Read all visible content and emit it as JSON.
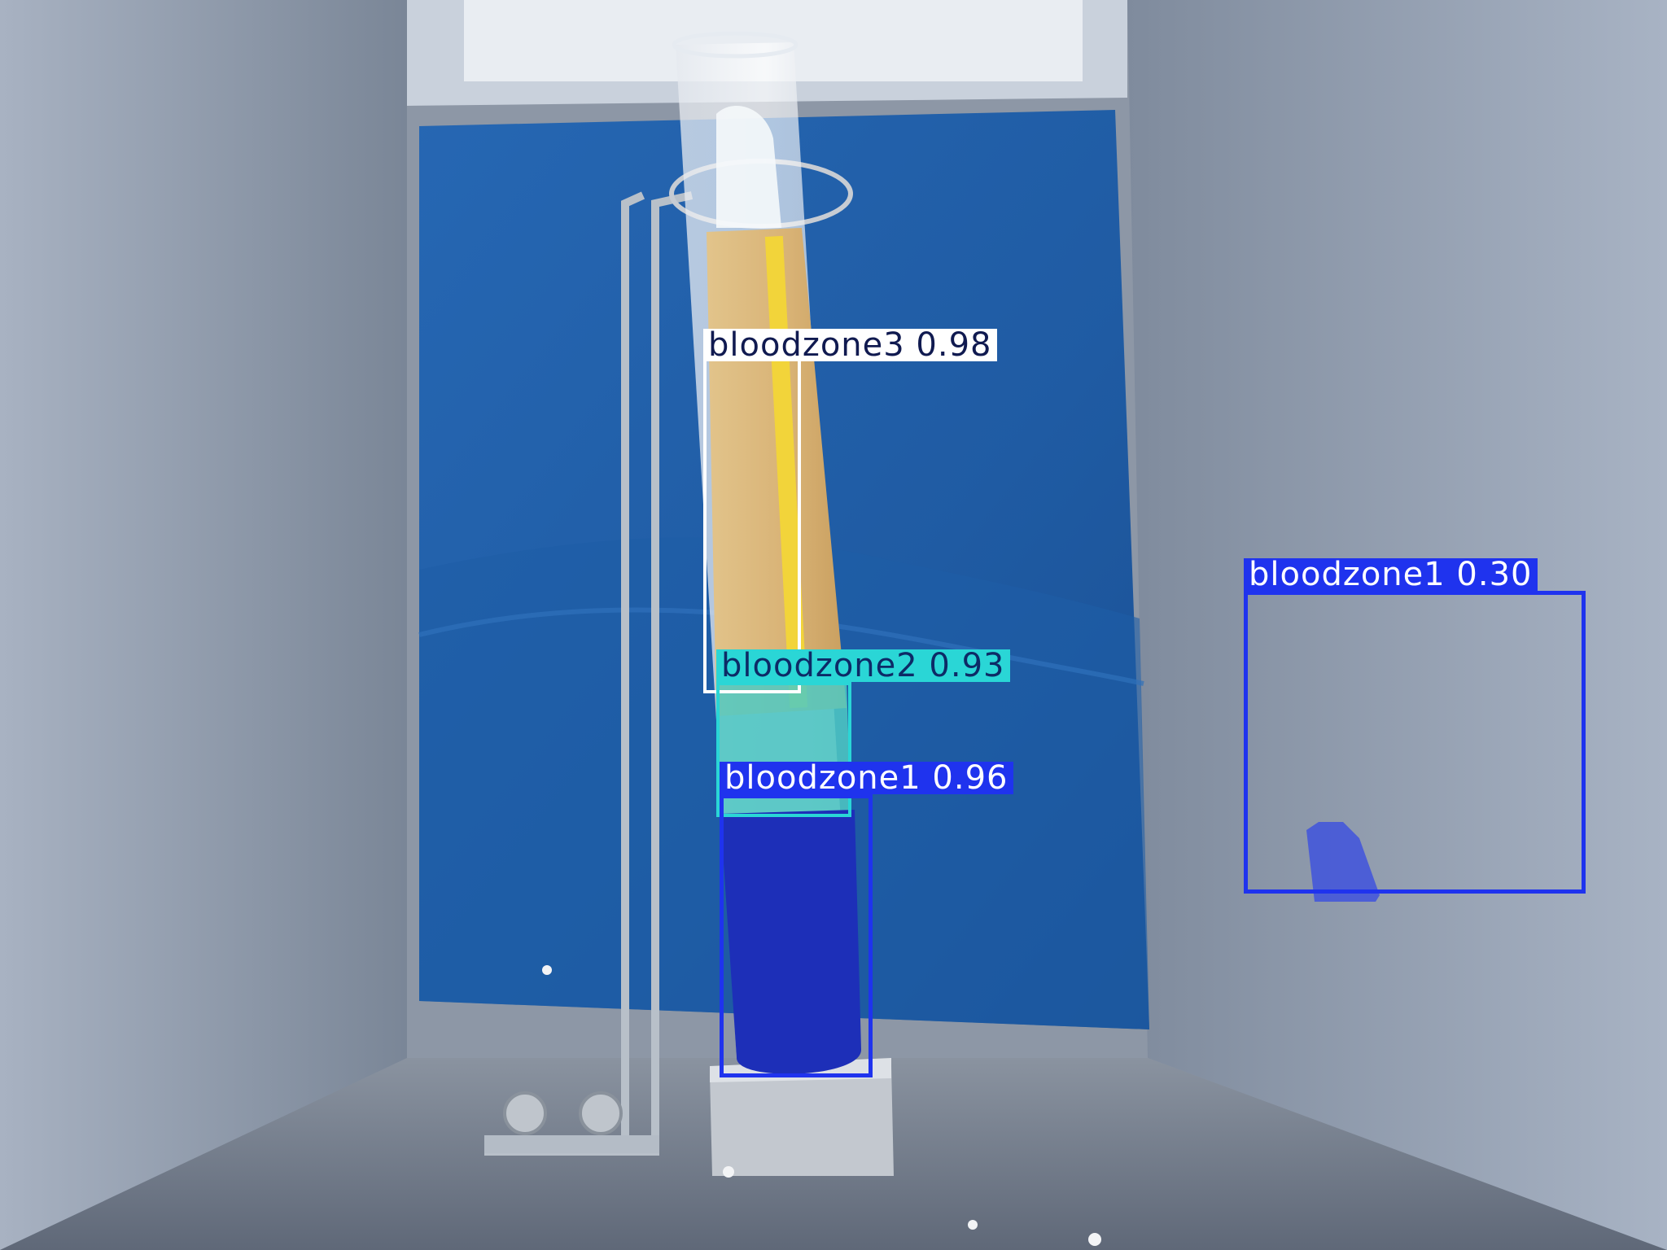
{
  "detections": [
    {
      "label": "bloodzone3 0.98",
      "class": "bloodzone3",
      "confidence": 0.98,
      "color": "#ffffff",
      "text_color": "#101a50"
    },
    {
      "label": "bloodzone2 0.93",
      "class": "bloodzone2",
      "confidence": 0.93,
      "color": "#2ad6d6",
      "text_color": "#0d2a66"
    },
    {
      "label": "bloodzone1 0.96",
      "class": "bloodzone1",
      "confidence": 0.96,
      "color": "#1f33ee",
      "text_color": "#ffffff"
    },
    {
      "label": "bloodzone1 0.30",
      "class": "bloodzone1",
      "confidence": 0.3,
      "color": "#1f33ee",
      "text_color": "#ffffff"
    }
  ],
  "colors": {
    "wall_left": "#8f9aab",
    "wall_right": "#8895a6",
    "back_panel": "#1f5fa8",
    "floor": "#707a8a",
    "plasma": "#d9b77c",
    "mask_bloodzone1": "#1d2fb8",
    "mask_bloodzone2": "#4fc9c3"
  }
}
